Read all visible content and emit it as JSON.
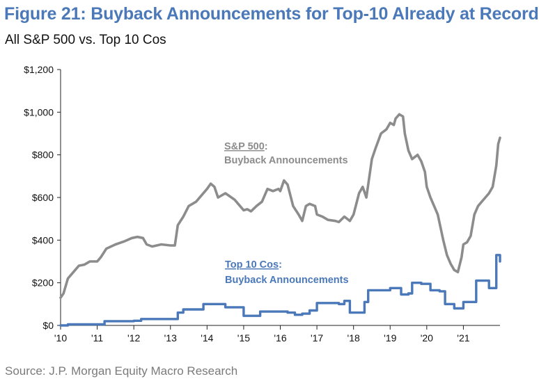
{
  "title": "Figure 21: Buyback Announcements for Top-10 Already at Record",
  "subtitle": "All S&P 500 vs. Top 10 Cos",
  "source": "Source: J.P. Morgan Equity Macro Research",
  "chart_data": {
    "type": "line",
    "title": "Figure 21: Buyback Announcements for Top-10 Already at Record",
    "subtitle": "All S&P 500 vs. Top 10 Cos",
    "xlabel": "",
    "ylabel": "",
    "xlim": [
      2010.0,
      2022.0
    ],
    "ylim": [
      0,
      1200
    ],
    "yticks": [
      0,
      200,
      400,
      600,
      800,
      1000,
      1200
    ],
    "ytick_labels": [
      "$0",
      "$200",
      "$400",
      "$600",
      "$800",
      "$1,000",
      "$1,200"
    ],
    "xticks": [
      2010,
      2011,
      2012,
      2013,
      2014,
      2015,
      2016,
      2017,
      2018,
      2019,
      2020,
      2021
    ],
    "xtick_labels": [
      "'10",
      "'11",
      "'12",
      "'13",
      "'14",
      "'15",
      "'16",
      "'17",
      "'18",
      "'19",
      "'20",
      "'21"
    ],
    "grid": false,
    "colors": {
      "sp500": "#8c8c8c",
      "top10": "#4a78b8",
      "title": "#4a78b8",
      "axis": "#222222"
    },
    "series": [
      {
        "name": "S&P 500",
        "label_line1": "S&P 500",
        "label_line1_suffix": ":",
        "label_line2": "Buyback Announcements",
        "step": false,
        "x": [
          2010.0,
          2010.08,
          2010.2,
          2010.35,
          2010.5,
          2010.65,
          2010.8,
          2011.0,
          2011.1,
          2011.25,
          2011.5,
          2011.75,
          2011.95,
          2012.1,
          2012.25,
          2012.35,
          2012.5,
          2012.75,
          2013.0,
          2013.12,
          2013.2,
          2013.35,
          2013.5,
          2013.7,
          2013.85,
          2014.0,
          2014.1,
          2014.2,
          2014.3,
          2014.5,
          2014.75,
          2014.9,
          2015.0,
          2015.1,
          2015.2,
          2015.35,
          2015.5,
          2015.65,
          2015.8,
          2015.95,
          2016.0,
          2016.1,
          2016.2,
          2016.35,
          2016.5,
          2016.6,
          2016.7,
          2016.8,
          2016.95,
          2017.0,
          2017.15,
          2017.3,
          2017.5,
          2017.6,
          2017.75,
          2017.9,
          2018.0,
          2018.15,
          2018.25,
          2018.35,
          2018.5,
          2018.6,
          2018.75,
          2018.9,
          2019.0,
          2019.1,
          2019.15,
          2019.25,
          2019.35,
          2019.4,
          2019.5,
          2019.6,
          2019.75,
          2019.85,
          2019.95,
          2020.0,
          2020.1,
          2020.2,
          2020.3,
          2020.45,
          2020.55,
          2020.65,
          2020.75,
          2020.85,
          2020.95,
          2021.0,
          2021.1,
          2021.2,
          2021.3,
          2021.4,
          2021.5,
          2021.6,
          2021.7,
          2021.8,
          2021.9,
          2021.95,
          2022.0
        ],
        "values": [
          130,
          150,
          220,
          250,
          280,
          285,
          300,
          300,
          320,
          360,
          380,
          395,
          410,
          415,
          410,
          380,
          370,
          380,
          375,
          375,
          470,
          510,
          560,
          580,
          610,
          640,
          665,
          650,
          600,
          620,
          590,
          560,
          540,
          545,
          535,
          560,
          580,
          640,
          630,
          640,
          630,
          680,
          660,
          560,
          520,
          490,
          560,
          570,
          560,
          520,
          510,
          495,
          490,
          485,
          510,
          490,
          520,
          620,
          650,
          600,
          780,
          830,
          900,
          920,
          950,
          940,
          970,
          990,
          980,
          900,
          820,
          780,
          800,
          770,
          720,
          650,
          600,
          560,
          520,
          400,
          330,
          290,
          260,
          250,
          320,
          380,
          390,
          420,
          520,
          560,
          580,
          600,
          620,
          650,
          750,
          850,
          880
        ]
      },
      {
        "name": "Top 10 Cos",
        "label_line1": "Top 10 Cos",
        "label_line1_suffix": ":",
        "label_line2": "Buyback Announcements",
        "step": true,
        "x": [
          2010.0,
          2010.2,
          2011.0,
          2011.2,
          2012.0,
          2012.2,
          2013.0,
          2013.2,
          2013.35,
          2013.75,
          2013.9,
          2014.4,
          2014.5,
          2014.8,
          2015.0,
          2015.3,
          2015.45,
          2015.6,
          2016.2,
          2016.4,
          2016.6,
          2016.8,
          2017.0,
          2017.5,
          2017.6,
          2017.75,
          2017.9,
          2018.1,
          2018.3,
          2018.4,
          2018.8,
          2019.0,
          2019.2,
          2019.3,
          2019.5,
          2019.6,
          2019.85,
          2020.1,
          2020.35,
          2020.5,
          2020.75,
          2021.0,
          2021.25,
          2021.35,
          2021.6,
          2021.7,
          2021.9,
          2022.0
        ],
        "values": [
          0,
          5,
          5,
          20,
          22,
          30,
          30,
          60,
          75,
          75,
          100,
          100,
          85,
          85,
          45,
          45,
          65,
          65,
          60,
          50,
          55,
          70,
          105,
          105,
          100,
          115,
          60,
          60,
          110,
          165,
          165,
          175,
          175,
          145,
          150,
          200,
          195,
          165,
          160,
          100,
          80,
          110,
          110,
          210,
          210,
          175,
          330,
          300
        ]
      }
    ],
    "annotations": [
      "S&P 500: Buyback Announcements",
      "Top 10 Cos: Buyback Announcements"
    ]
  }
}
